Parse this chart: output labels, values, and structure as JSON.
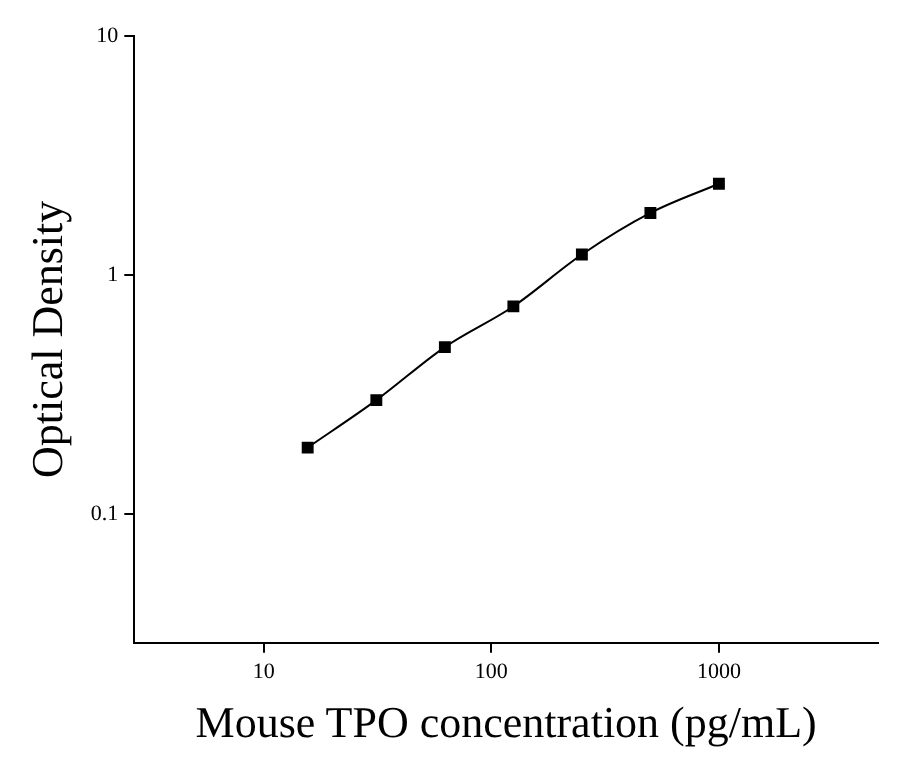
{
  "chart_data": {
    "type": "scatter",
    "xlabel": "Mouse TPO concentration (pg/mL)",
    "ylabel": "Optical Density",
    "log": "xy",
    "grid": false,
    "legend": false,
    "marker": "square",
    "xlim": [
      2.7,
      5000
    ],
    "xticks": [
      10,
      100,
      1000
    ],
    "ylim": [
      0.029,
      10
    ],
    "yticks": [
      {
        "value": 0.1,
        "label": "0.1"
      },
      1,
      10
    ],
    "series": [
      {
        "type": "line",
        "marker": "none",
        "color": "#000000",
        "x": [
          15.6,
          31.25,
          62.5,
          125,
          250,
          500,
          1000
        ],
        "values": [
          0.19,
          0.3,
          0.5,
          0.74,
          1.22,
          1.82,
          2.41
        ]
      },
      {
        "color": "#000000",
        "x": [
          15.6,
          31.25,
          62.5,
          125,
          250,
          500,
          1000
        ],
        "values": [
          0.19,
          0.3,
          0.5,
          0.74,
          1.22,
          1.82,
          2.41
        ]
      }
    ]
  }
}
